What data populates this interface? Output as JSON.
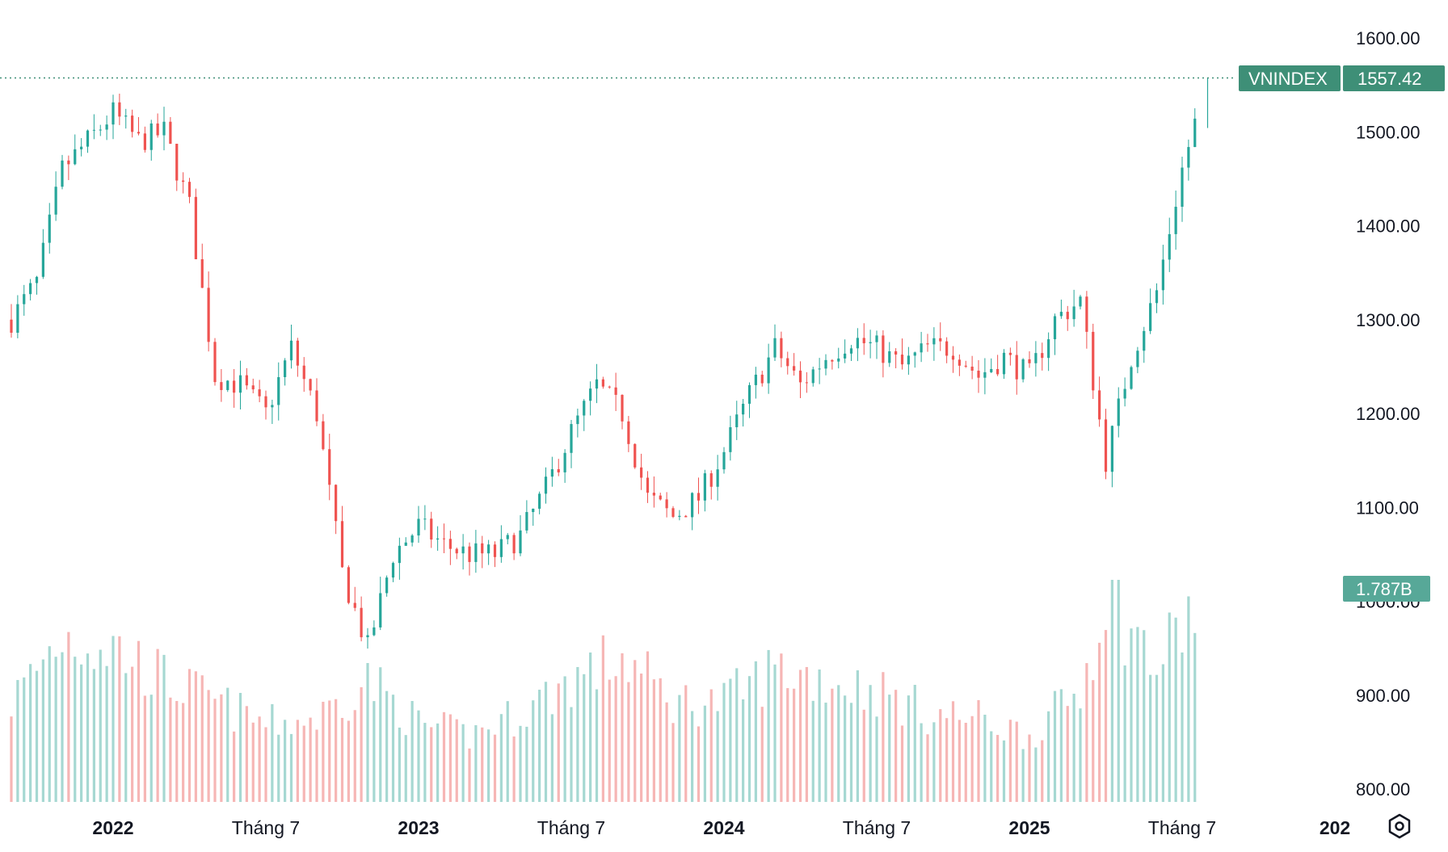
{
  "chart_data": {
    "type": "candlestick",
    "symbol": "VNINDEX",
    "last_price_label": "1557.42",
    "volume_label": "1.787B",
    "y_ticks": [
      "1600.00",
      "1500.00",
      "1400.00",
      "1300.00",
      "1200.00",
      "1100.00",
      "1000.00",
      "900.00",
      "800.00"
    ],
    "ylim": [
      800,
      1600
    ],
    "x_ticks": [
      {
        "label": "2022",
        "date": "2022-01",
        "major": true
      },
      {
        "label": "Tháng 7",
        "date": "2022-07",
        "major": false
      },
      {
        "label": "2023",
        "date": "2023-01",
        "major": true
      },
      {
        "label": "Tháng 7",
        "date": "2023-07",
        "major": false
      },
      {
        "label": "2024",
        "date": "2024-01",
        "major": true
      },
      {
        "label": "Tháng 7",
        "date": "2024-07",
        "major": false
      },
      {
        "label": "2025",
        "date": "2025-01",
        "major": true
      },
      {
        "label": "Tháng 7",
        "date": "2025-07",
        "major": false
      },
      {
        "label": "202",
        "date": "2026-01",
        "major": true
      }
    ],
    "price_path": [
      [
        "2021-09",
        1300
      ],
      [
        "2021-10",
        1340
      ],
      [
        "2021-11",
        1460
      ],
      [
        "2021-12",
        1490
      ],
      [
        "2022-01",
        1520
      ],
      [
        "2022-02",
        1490
      ],
      [
        "2022-03",
        1500
      ],
      [
        "2022-04",
        1420
      ],
      [
        "2022-05",
        1240
      ],
      [
        "2022-06",
        1230
      ],
      [
        "2022-07",
        1200
      ],
      [
        "2022-08",
        1270
      ],
      [
        "2022-09",
        1200
      ],
      [
        "2022-10",
        1030
      ],
      [
        "2022-11",
        950
      ],
      [
        "2022-12",
        1050
      ],
      [
        "2023-01",
        1080
      ],
      [
        "2023-02",
        1060
      ],
      [
        "2023-03",
        1050
      ],
      [
        "2023-04",
        1050
      ],
      [
        "2023-05",
        1070
      ],
      [
        "2023-06",
        1120
      ],
      [
        "2023-07",
        1180
      ],
      [
        "2023-08",
        1230
      ],
      [
        "2023-09",
        1200
      ],
      [
        "2023-10",
        1110
      ],
      [
        "2023-11",
        1090
      ],
      [
        "2023-12",
        1110
      ],
      [
        "2024-01",
        1160
      ],
      [
        "2024-02",
        1220
      ],
      [
        "2024-03",
        1270
      ],
      [
        "2024-04",
        1230
      ],
      [
        "2024-05",
        1260
      ],
      [
        "2024-06",
        1280
      ],
      [
        "2024-07",
        1270
      ],
      [
        "2024-08",
        1250
      ],
      [
        "2024-09",
        1270
      ],
      [
        "2024-10",
        1270
      ],
      [
        "2024-11",
        1240
      ],
      [
        "2024-12",
        1260
      ],
      [
        "2025-01",
        1240
      ],
      [
        "2025-02",
        1300
      ],
      [
        "2025-03",
        1320
      ],
      [
        "2025-04",
        1150
      ],
      [
        "2025-05",
        1260
      ],
      [
        "2025-06",
        1330
      ],
      [
        "2025-07",
        1460
      ],
      [
        "2025-08",
        1557.42
      ]
    ],
    "volume_path": [
      [
        "2021-09",
        0.9
      ],
      [
        "2021-11",
        1.5
      ],
      [
        "2022-01",
        1.4
      ],
      [
        "2022-03",
        1.1
      ],
      [
        "2022-05",
        0.9
      ],
      [
        "2022-07",
        0.7
      ],
      [
        "2022-09",
        0.75
      ],
      [
        "2022-11",
        1.1
      ],
      [
        "2023-01",
        0.7
      ],
      [
        "2023-03",
        0.6
      ],
      [
        "2023-05",
        0.8
      ],
      [
        "2023-07",
        1.1
      ],
      [
        "2023-09",
        1.3
      ],
      [
        "2023-11",
        0.9
      ],
      [
        "2024-01",
        0.9
      ],
      [
        "2024-03",
        1.2
      ],
      [
        "2024-05",
        1.1
      ],
      [
        "2024-07",
        1.0
      ],
      [
        "2024-09",
        0.8
      ],
      [
        "2024-11",
        0.75
      ],
      [
        "2025-01",
        0.6
      ],
      [
        "2025-03",
        1.0
      ],
      [
        "2025-04",
        1.9
      ],
      [
        "2025-06",
        1.2
      ],
      [
        "2025-07",
        1.6
      ],
      [
        "2025-08",
        1.787
      ]
    ],
    "colors": {
      "up": "#26a69a",
      "down": "#ef5350",
      "up_volume": "#a6d8d2",
      "down_volume": "#f6b6b5",
      "tag": "#3e8f77",
      "price_line": "#3e8f77",
      "text": "#131722"
    },
    "grid": false,
    "legend": "none"
  },
  "icons": {
    "settings": "settings-hexagon-icon"
  }
}
